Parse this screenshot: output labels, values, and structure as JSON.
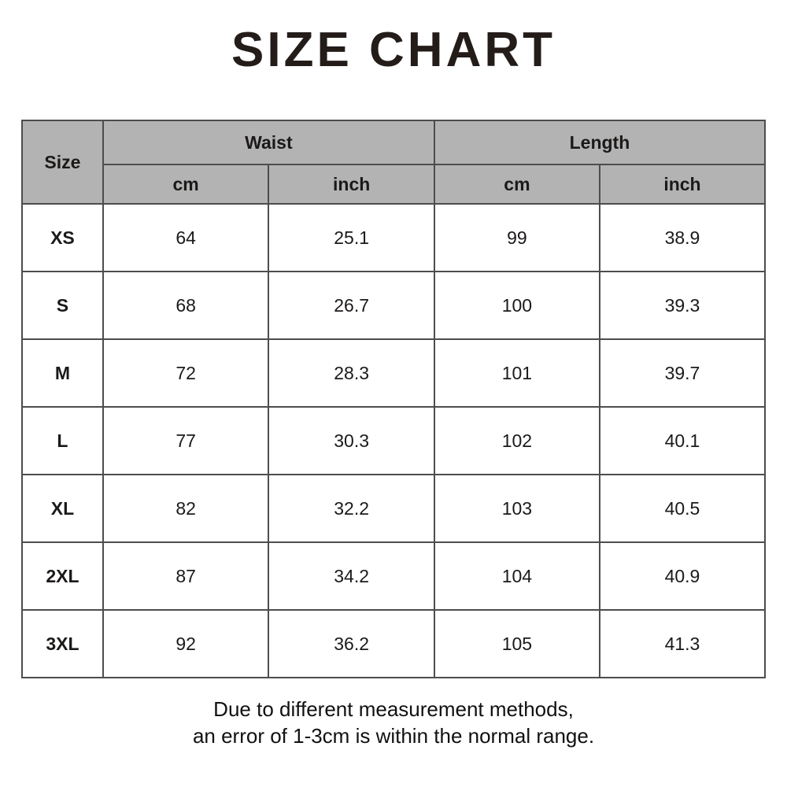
{
  "title": "SIZE CHART",
  "table": {
    "header": {
      "size_label": "Size",
      "groups": [
        {
          "label": "Waist"
        },
        {
          "label": "Length"
        }
      ],
      "subheaders": [
        "cm",
        "inch",
        "cm",
        "inch"
      ]
    },
    "rows": [
      {
        "size": "XS",
        "waist_cm": "64",
        "waist_inch": "25.1",
        "length_cm": "99",
        "length_inch": "38.9"
      },
      {
        "size": "S",
        "waist_cm": "68",
        "waist_inch": "26.7",
        "length_cm": "100",
        "length_inch": "39.3"
      },
      {
        "size": "M",
        "waist_cm": "72",
        "waist_inch": "28.3",
        "length_cm": "101",
        "length_inch": "39.7"
      },
      {
        "size": "L",
        "waist_cm": "77",
        "waist_inch": "30.3",
        "length_cm": "102",
        "length_inch": "40.1"
      },
      {
        "size": "XL",
        "waist_cm": "82",
        "waist_inch": "32.2",
        "length_cm": "103",
        "length_inch": "40.5"
      },
      {
        "size": "2XL",
        "waist_cm": "87",
        "waist_inch": "34.2",
        "length_cm": "104",
        "length_inch": "40.9"
      },
      {
        "size": "3XL",
        "waist_cm": "92",
        "waist_inch": "36.2",
        "length_cm": "105",
        "length_inch": "41.3"
      }
    ]
  },
  "footer": {
    "line1": "Due to different measurement methods,",
    "line2": "an error of 1-3cm is within the normal range."
  },
  "colors": {
    "header_bg": "#b3b3b3",
    "border": "#4d4d4d",
    "text": "#1c1a19",
    "background": "#ffffff"
  },
  "chart_data": {
    "type": "table",
    "title": "SIZE CHART",
    "columns": [
      "Size",
      "Waist cm",
      "Waist inch",
      "Length cm",
      "Length inch"
    ],
    "rows": [
      [
        "XS",
        64,
        25.1,
        99,
        38.9
      ],
      [
        "S",
        68,
        26.7,
        100,
        39.3
      ],
      [
        "M",
        72,
        28.3,
        101,
        39.7
      ],
      [
        "L",
        77,
        30.3,
        102,
        40.1
      ],
      [
        "XL",
        82,
        32.2,
        103,
        40.5
      ],
      [
        "2XL",
        87,
        34.2,
        104,
        40.9
      ],
      [
        "3XL",
        92,
        36.2,
        105,
        41.3
      ]
    ],
    "note": "Due to different measurement methods, an error of 1-3cm is within the normal range."
  }
}
